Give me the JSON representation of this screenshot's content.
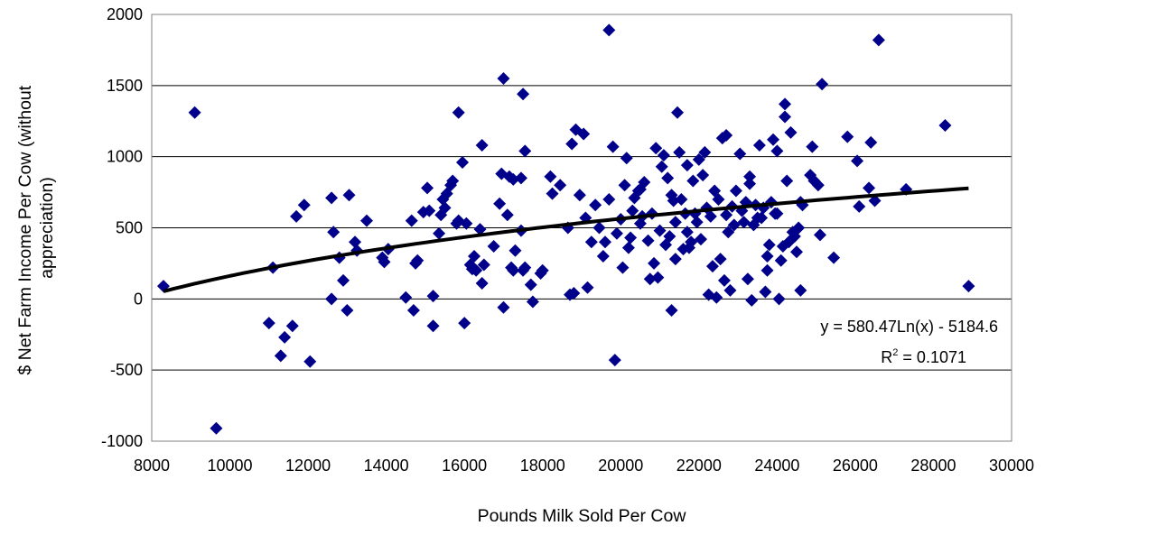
{
  "chart_data": {
    "type": "scatter",
    "xlabel": "Pounds Milk Sold Per Cow",
    "ylabel_lines": [
      "$ Net Farm Income Per Cow (without",
      "appreciation)"
    ],
    "xlim": [
      8000,
      30000
    ],
    "ylim": [
      -1000,
      2000
    ],
    "x_ticks": [
      8000,
      10000,
      12000,
      14000,
      16000,
      18000,
      20000,
      22000,
      24000,
      26000,
      28000,
      30000
    ],
    "y_ticks": [
      -1000,
      -500,
      0,
      500,
      1000,
      1500,
      2000
    ],
    "grid": "horizontal",
    "marker_color": "#00008B",
    "trendline": {
      "type": "logarithmic",
      "a": 580.47,
      "b": -5184.6,
      "x_range": [
        8300,
        28900
      ],
      "color": "#000000",
      "equation_label": "y = 580.47Ln(x) - 5184.6",
      "r2_prefix": "R",
      "r2_exponent": "2",
      "r2_suffix": " = 0.1071"
    },
    "points": [
      [
        8300,
        90
      ],
      [
        9100,
        1310
      ],
      [
        9650,
        -910
      ],
      [
        11000,
        -170
      ],
      [
        11100,
        220
      ],
      [
        11300,
        -400
      ],
      [
        11400,
        -270
      ],
      [
        11600,
        -190
      ],
      [
        11700,
        580
      ],
      [
        11900,
        660
      ],
      [
        12050,
        -440
      ],
      [
        12600,
        710
      ],
      [
        12600,
        0
      ],
      [
        12650,
        470
      ],
      [
        12800,
        290
      ],
      [
        12900,
        130
      ],
      [
        13000,
        -80
      ],
      [
        13050,
        730
      ],
      [
        13200,
        400
      ],
      [
        13250,
        340
      ],
      [
        13500,
        550
      ],
      [
        13900,
        290
      ],
      [
        13950,
        260
      ],
      [
        14050,
        350
      ],
      [
        14500,
        10
      ],
      [
        14650,
        550
      ],
      [
        14700,
        -80
      ],
      [
        14750,
        250
      ],
      [
        14800,
        270
      ],
      [
        14950,
        610
      ],
      [
        15050,
        780
      ],
      [
        15100,
        620
      ],
      [
        15200,
        20
      ],
      [
        15200,
        -190
      ],
      [
        15350,
        460
      ],
      [
        15400,
        590
      ],
      [
        15450,
        700
      ],
      [
        15500,
        640
      ],
      [
        15550,
        740
      ],
      [
        15650,
        800
      ],
      [
        15700,
        830
      ],
      [
        15800,
        530
      ],
      [
        15850,
        1310
      ],
      [
        15850,
        550
      ],
      [
        15950,
        960
      ],
      [
        16000,
        -170
      ],
      [
        16050,
        530
      ],
      [
        16150,
        240
      ],
      [
        16200,
        210
      ],
      [
        16250,
        300
      ],
      [
        16300,
        200
      ],
      [
        16400,
        490
      ],
      [
        16450,
        110
      ],
      [
        16450,
        1080
      ],
      [
        16500,
        240
      ],
      [
        16750,
        370
      ],
      [
        16900,
        670
      ],
      [
        16950,
        880
      ],
      [
        17000,
        -60
      ],
      [
        17000,
        1550
      ],
      [
        17100,
        590
      ],
      [
        17150,
        860
      ],
      [
        17200,
        220
      ],
      [
        17250,
        200
      ],
      [
        17250,
        840
      ],
      [
        17300,
        340
      ],
      [
        17450,
        850
      ],
      [
        17450,
        480
      ],
      [
        17500,
        200
      ],
      [
        17500,
        1440
      ],
      [
        17550,
        1040
      ],
      [
        17550,
        220
      ],
      [
        17700,
        100
      ],
      [
        17750,
        -20
      ],
      [
        17950,
        180
      ],
      [
        18000,
        200
      ],
      [
        18200,
        860
      ],
      [
        18250,
        740
      ],
      [
        18450,
        800
      ],
      [
        18650,
        500
      ],
      [
        18700,
        30
      ],
      [
        18750,
        1090
      ],
      [
        18800,
        40
      ],
      [
        18850,
        1190
      ],
      [
        18950,
        730
      ],
      [
        19050,
        1160
      ],
      [
        19150,
        80
      ],
      [
        19100,
        570
      ],
      [
        19250,
        400
      ],
      [
        19350,
        660
      ],
      [
        19450,
        500
      ],
      [
        19550,
        300
      ],
      [
        19600,
        400
      ],
      [
        19700,
        1890
      ],
      [
        19700,
        700
      ],
      [
        19800,
        1070
      ],
      [
        19850,
        -430
      ],
      [
        19900,
        460
      ],
      [
        20000,
        560
      ],
      [
        20050,
        220
      ],
      [
        20100,
        800
      ],
      [
        20150,
        990
      ],
      [
        20200,
        360
      ],
      [
        20250,
        430
      ],
      [
        20300,
        620
      ],
      [
        20350,
        710
      ],
      [
        20450,
        760
      ],
      [
        20500,
        770
      ],
      [
        20500,
        530
      ],
      [
        20550,
        580
      ],
      [
        20600,
        820
      ],
      [
        20700,
        410
      ],
      [
        20750,
        140
      ],
      [
        20800,
        600
      ],
      [
        20850,
        250
      ],
      [
        20900,
        1060
      ],
      [
        20950,
        150
      ],
      [
        21000,
        480
      ],
      [
        21050,
        930
      ],
      [
        21100,
        1010
      ],
      [
        21150,
        380
      ],
      [
        21200,
        850
      ],
      [
        21250,
        440
      ],
      [
        21300,
        -80
      ],
      [
        21300,
        730
      ],
      [
        21350,
        690
      ],
      [
        21400,
        540
      ],
      [
        21400,
        280
      ],
      [
        21450,
        1310
      ],
      [
        21500,
        1030
      ],
      [
        21550,
        700
      ],
      [
        21600,
        350
      ],
      [
        21650,
        600
      ],
      [
        21700,
        940
      ],
      [
        21700,
        470
      ],
      [
        21750,
        360
      ],
      [
        21800,
        400
      ],
      [
        21850,
        830
      ],
      [
        21900,
        600
      ],
      [
        21950,
        540
      ],
      [
        22000,
        980
      ],
      [
        22050,
        420
      ],
      [
        22100,
        870
      ],
      [
        22150,
        1030
      ],
      [
        22200,
        640
      ],
      [
        22250,
        30
      ],
      [
        22300,
        580
      ],
      [
        22350,
        230
      ],
      [
        22400,
        760
      ],
      [
        22450,
        10
      ],
      [
        22500,
        700
      ],
      [
        22550,
        280
      ],
      [
        22600,
        1130
      ],
      [
        22650,
        130
      ],
      [
        22700,
        590
      ],
      [
        22700,
        1150
      ],
      [
        22750,
        470
      ],
      [
        22800,
        60
      ],
      [
        22850,
        650
      ],
      [
        22900,
        520
      ],
      [
        22950,
        760
      ],
      [
        23050,
        1020
      ],
      [
        23100,
        620
      ],
      [
        23150,
        540
      ],
      [
        23200,
        680
      ],
      [
        23250,
        140
      ],
      [
        23300,
        860
      ],
      [
        23300,
        810
      ],
      [
        23350,
        -10
      ],
      [
        23400,
        520
      ],
      [
        23450,
        660
      ],
      [
        23500,
        570
      ],
      [
        23550,
        1080
      ],
      [
        23600,
        570
      ],
      [
        23650,
        640
      ],
      [
        23700,
        50
      ],
      [
        23750,
        300
      ],
      [
        23750,
        200
      ],
      [
        23800,
        380
      ],
      [
        23850,
        680
      ],
      [
        23900,
        1120
      ],
      [
        23950,
        600
      ],
      [
        24000,
        600
      ],
      [
        24000,
        1040
      ],
      [
        24050,
        0
      ],
      [
        24100,
        270
      ],
      [
        24150,
        370
      ],
      [
        24200,
        1280
      ],
      [
        24200,
        1370
      ],
      [
        24250,
        830
      ],
      [
        24300,
        400
      ],
      [
        24350,
        1170
      ],
      [
        24400,
        470
      ],
      [
        24450,
        440
      ],
      [
        24500,
        330
      ],
      [
        24550,
        500
      ],
      [
        24600,
        680
      ],
      [
        24600,
        60
      ],
      [
        24650,
        660
      ],
      [
        24850,
        870
      ],
      [
        24900,
        1070
      ],
      [
        24950,
        830
      ],
      [
        25050,
        800
      ],
      [
        25100,
        450
      ],
      [
        25150,
        1510
      ],
      [
        25450,
        290
      ],
      [
        25800,
        1140
      ],
      [
        26050,
        970
      ],
      [
        26100,
        650
      ],
      [
        26350,
        780
      ],
      [
        26400,
        1100
      ],
      [
        26500,
        690
      ],
      [
        26600,
        1820
      ],
      [
        27300,
        770
      ],
      [
        28300,
        1220
      ],
      [
        28900,
        90
      ]
    ]
  }
}
